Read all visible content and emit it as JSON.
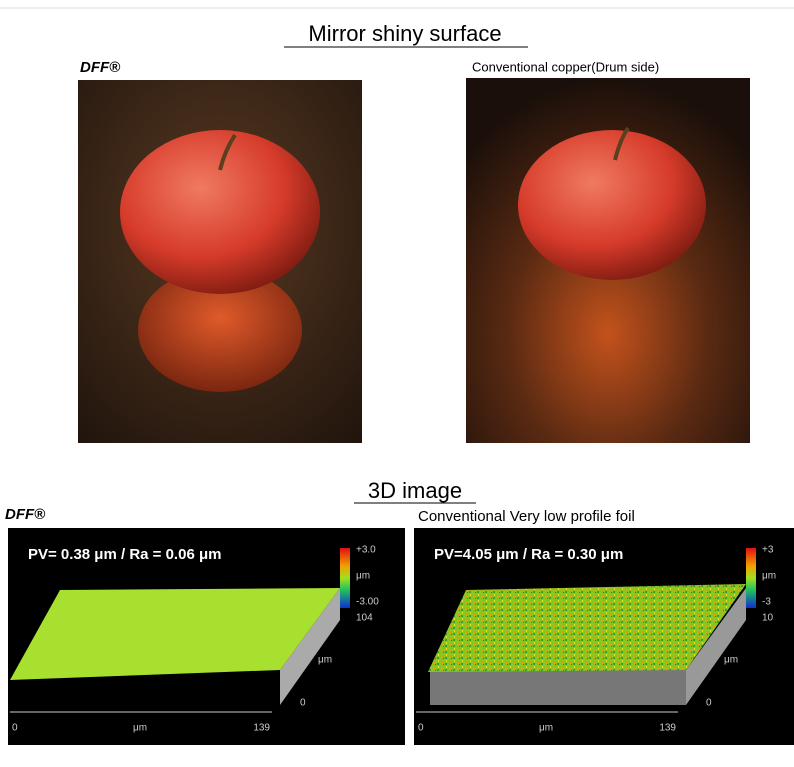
{
  "header": {
    "title": "Mirror shiny surface"
  },
  "photos": [
    {
      "caption": "DFF®"
    },
    {
      "caption": "Conventional copper(Drum side)"
    }
  ],
  "section": {
    "title": "3D image"
  },
  "panels": [
    {
      "caption": "DFF®",
      "measure": "PV= 0.38 μm / Ra = 0.06 μm",
      "scale": [
        "+3.0",
        "μm",
        "-3.00",
        "104"
      ],
      "x_axis": [
        "0",
        "μm",
        "139"
      ],
      "y_axis": [
        "μm",
        "0"
      ]
    },
    {
      "caption": "Conventional Very low profile foil",
      "measure": "PV=4.05 μm / Ra = 0.30 μm",
      "scale": [
        "+3",
        "μm",
        "-3",
        "10"
      ],
      "x_axis": [
        "0",
        "μm",
        "139"
      ],
      "y_axis": [
        "μm",
        "0"
      ]
    }
  ]
}
